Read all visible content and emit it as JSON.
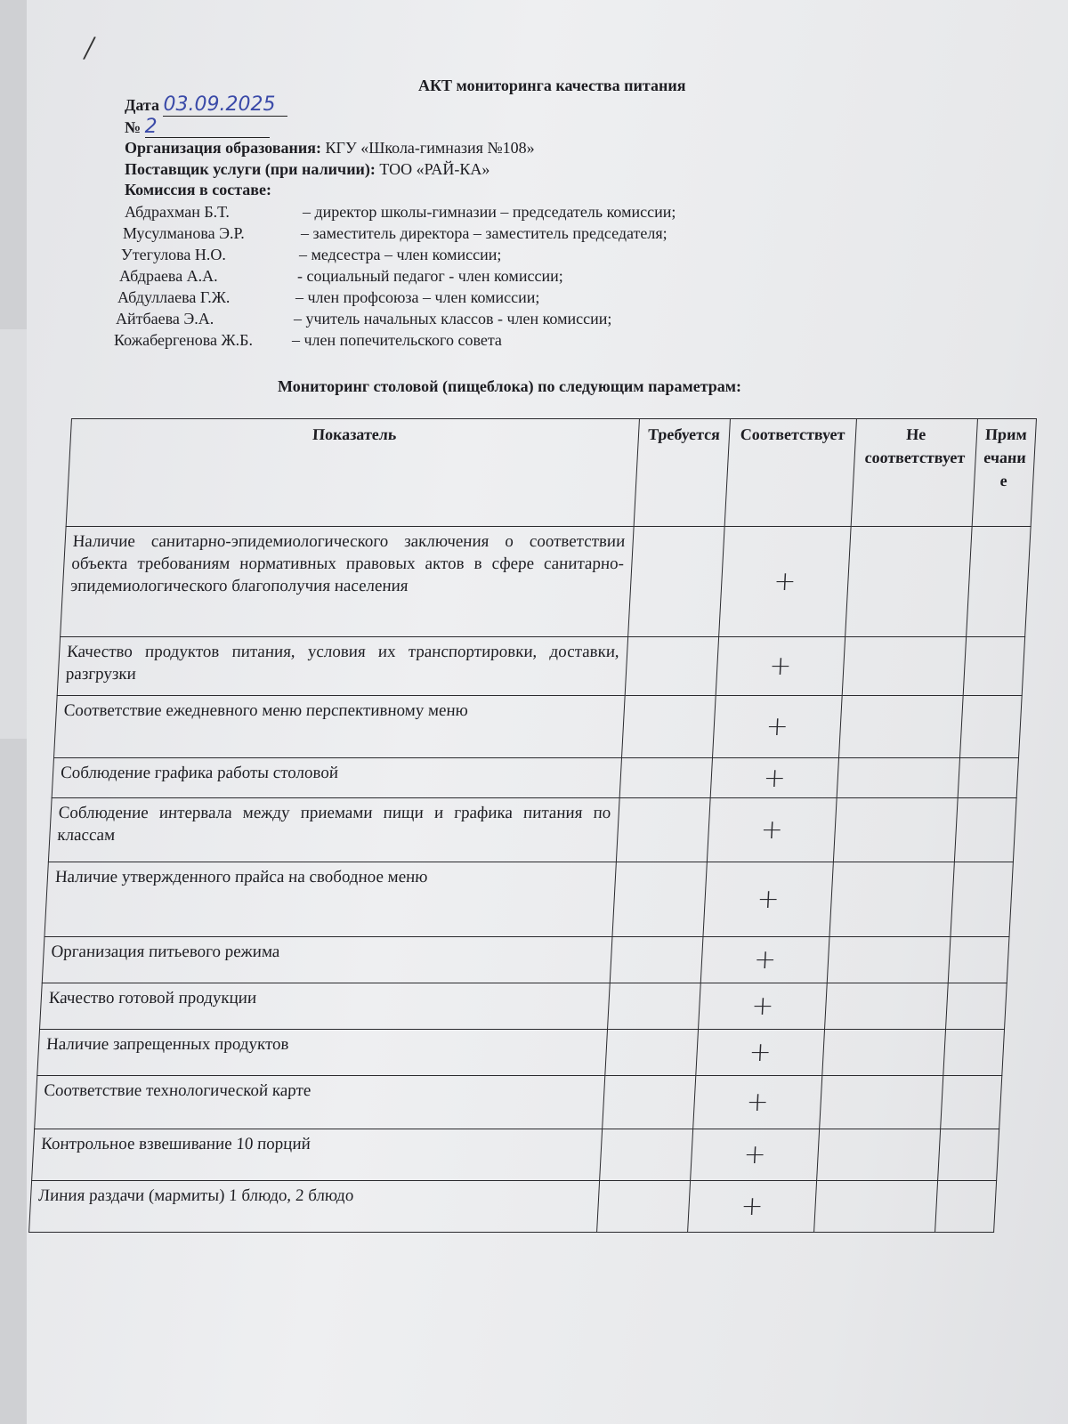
{
  "title": "АКТ мониторинга качества питания",
  "date_label": "Дата",
  "date_value": "03.09.2025",
  "number_label": "№",
  "number_value": "2",
  "org_label": "Организация образования:",
  "org_value": "КГУ «Школа-гимназия №108»",
  "supplier_label": "Поставщик услуги (при наличии):",
  "supplier_value": "ТОО «РАЙ-КА»",
  "commission_label": "Комиссия в составе:",
  "members": [
    {
      "name": "Абдрахман Б.Т.",
      "role": "– директор школы-гимназии – председатель комиссии;"
    },
    {
      "name": "Мусулманова Э.Р.",
      "role": "– заместитель директора – заместитель председателя;"
    },
    {
      "name": "Утегулова Н.О.",
      "role": "– медсестра  – член комиссии;"
    },
    {
      "name": "Абдраева А.А.",
      "role": "- социальный педагог - член комиссии;"
    },
    {
      "name": "Абдуллаева Г.Ж.",
      "role": "– член профсоюза – член комиссии;"
    },
    {
      "name": "Айтбаева Э.А.",
      "role": "– учитель начальных классов - член комиссии;"
    },
    {
      "name": "Кожабергенова Ж.Б.",
      "role": "– член попечительского совета"
    }
  ],
  "subtitle": "Мониторинг столовой (пищеблока) по следующим параметрам:",
  "table": {
    "headers": [
      "Показатель",
      "Требуется",
      "Соответствует",
      "Не соответствует",
      "Примечание"
    ],
    "rows": [
      {
        "indicator": "Наличие санитарно-эпидемиологического заключения о соответствии объекта требованиям нормативных правовых актов в сфере санитарно-эпидемиологического благополучия населения",
        "complies": "+"
      },
      {
        "indicator": "Качество продуктов питания, условия их транспортировки, доставки, разгрузки",
        "complies": "+"
      },
      {
        "indicator": "Соответствие ежедневного меню перспективному меню",
        "complies": "+"
      },
      {
        "indicator": "Соблюдение графика работы столовой",
        "complies": "+"
      },
      {
        "indicator": "Соблюдение интервала между приемами пищи и графика питания по классам",
        "complies": "+"
      },
      {
        "indicator": "Наличие утвержденного прайса на свободное меню",
        "complies": "+"
      },
      {
        "indicator": "Организация питьевого режима",
        "complies": "+"
      },
      {
        "indicator": "Качество готовой продукции",
        "complies": "+"
      },
      {
        "indicator": "Наличие запрещенных продуктов",
        "complies": "+"
      },
      {
        "indicator": "Соответствие технологической карте",
        "complies": "+"
      },
      {
        "indicator": "Контрольное взвешивание 10 порций",
        "complies": "+"
      },
      {
        "indicator": "Линия раздачи (мармиты) 1 блюдо, 2 блюдо",
        "complies": "+"
      }
    ]
  }
}
